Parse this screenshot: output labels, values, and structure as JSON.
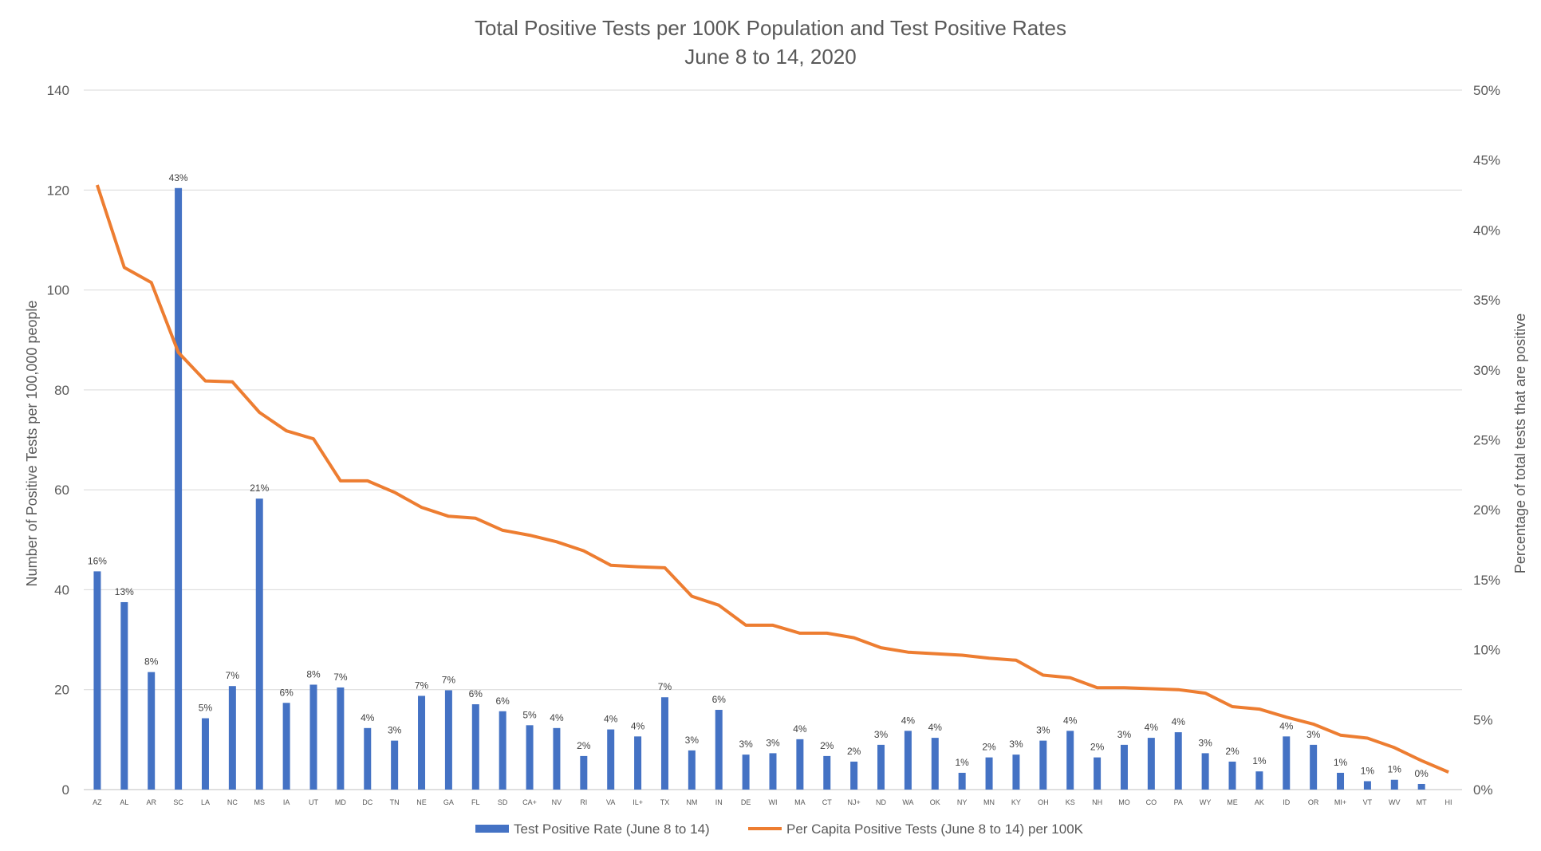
{
  "chart_data": {
    "type": "bar",
    "title": "Total Positive Tests per 100K Population and Test Positive Rates",
    "subtitle": "June 8 to 14, 2020",
    "ylabel": "Number of Positive Tests per 100,000 people",
    "y2label": "Percentage of total tests that are positive",
    "ylim": [
      0,
      140
    ],
    "y2lim": [
      0,
      50
    ],
    "y_ticks": [
      "0",
      "20",
      "40",
      "60",
      "80",
      "100",
      "120",
      "140"
    ],
    "y2_ticks": [
      "0%",
      "5%",
      "10%",
      "15%",
      "20%",
      "25%",
      "30%",
      "35%",
      "40%",
      "45%",
      "50%"
    ],
    "grid": true,
    "legend_position": "bottom",
    "categories": [
      "AZ",
      "AL",
      "AR",
      "SC",
      "LA",
      "NC",
      "MS",
      "IA",
      "UT",
      "MD",
      "DC",
      "TN",
      "NE",
      "GA",
      "FL",
      "SD",
      "CA+",
      "NV",
      "RI",
      "VA",
      "IL+",
      "TX",
      "NM",
      "IN",
      "DE",
      "WI",
      "MA",
      "CT",
      "NJ+",
      "ND",
      "WA",
      "OK",
      "NY",
      "MN",
      "KY",
      "OH",
      "KS",
      "NH",
      "MO",
      "CO",
      "PA",
      "WY",
      "ME",
      "AK",
      "ID",
      "OR",
      "MI+",
      "VT",
      "WV",
      "MT",
      "HI"
    ],
    "series": [
      {
        "name": "Test Positive Rate (June 8 to 14)",
        "type": "bar",
        "axis": "right",
        "color": "#4472C4",
        "values": [
          15.6,
          13.4,
          8.4,
          43.0,
          5.1,
          7.4,
          20.8,
          6.2,
          7.5,
          7.3,
          4.4,
          3.5,
          6.7,
          7.1,
          6.1,
          5.6,
          4.6,
          4.4,
          2.4,
          4.3,
          3.8,
          6.6,
          2.8,
          5.7,
          2.5,
          2.6,
          3.6,
          2.4,
          2.0,
          3.2,
          4.2,
          3.7,
          1.2,
          2.3,
          2.5,
          3.5,
          4.2,
          2.3,
          3.2,
          3.7,
          4.1,
          2.6,
          2.0,
          1.3,
          3.8,
          3.2,
          1.2,
          0.6,
          0.7,
          0.4,
          null
        ],
        "labels": [
          "16%",
          "13%",
          "8%",
          "43%",
          "5%",
          "7%",
          "21%",
          "6%",
          "8%",
          "7%",
          "4%",
          "3%",
          "7%",
          "7%",
          "6%",
          "6%",
          "5%",
          "4%",
          "2%",
          "4%",
          "4%",
          "7%",
          "3%",
          "6%",
          "3%",
          "3%",
          "4%",
          "2%",
          "2%",
          "3%",
          "4%",
          "4%",
          "1%",
          "2%",
          "3%",
          "3%",
          "4%",
          "2%",
          "3%",
          "4%",
          "4%",
          "3%",
          "2%",
          "1%",
          "4%",
          "3%",
          "1%",
          "1%",
          "1%",
          "0%",
          ""
        ]
      },
      {
        "name": "Per Capita Positive Tests (June 8 to 14) per 100K",
        "type": "line",
        "axis": "left",
        "color": "#ED7D31",
        "values": [
          121,
          104.5,
          101.5,
          87.5,
          81.8,
          81.6,
          75.5,
          71.8,
          70.2,
          61.8,
          61.8,
          59.5,
          56.5,
          54.7,
          54.3,
          51.9,
          50.9,
          49.6,
          47.8,
          44.9,
          44.6,
          44.4,
          38.7,
          36.9,
          32.9,
          32.9,
          31.3,
          31.3,
          30.4,
          28.4,
          27.5,
          27.2,
          26.9,
          26.3,
          25.9,
          22.9,
          22.4,
          20.4,
          20.4,
          20.2,
          20.0,
          19.3,
          16.6,
          16.1,
          14.5,
          13.1,
          10.9,
          10.3,
          8.4,
          5.8,
          3.5
        ]
      }
    ]
  }
}
